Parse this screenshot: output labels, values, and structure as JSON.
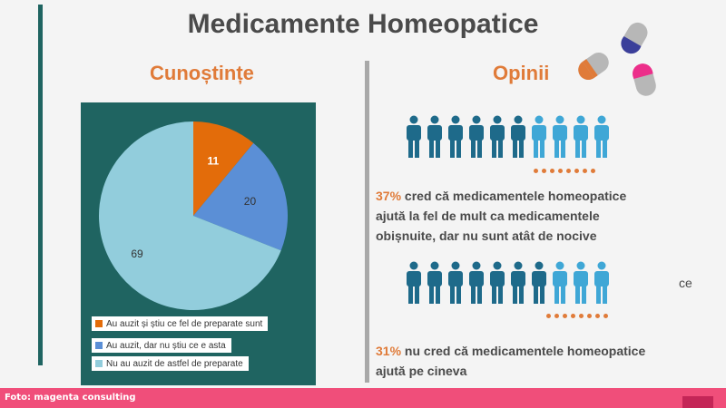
{
  "title": "Medicamente Homeopatice",
  "sections": {
    "left_title": "Cunoștințe",
    "right_title": "Opinii"
  },
  "chart_data": {
    "type": "pie",
    "slices": [
      {
        "label": "Au auzit și știu ce fel de preparate sunt",
        "value": 11,
        "color": "#e36c0a"
      },
      {
        "label": "Au auzit, dar nu știu ce e asta",
        "value": 20,
        "color": "#5b8fd6"
      },
      {
        "label": "Nu au auzit de astfel de preparate",
        "value": 69,
        "color": "#92cddc"
      }
    ],
    "legend_position": "bottom"
  },
  "opinions": [
    {
      "pct": "37%",
      "line1": "cred că medicamentele homeopatice",
      "line2": "ajută la fel de mult ca medicamentele",
      "line3": "obișnuite, dar nu sunt atât de nocive",
      "dark_people": 6,
      "light_people": 4
    },
    {
      "pct": "31%",
      "line1": "nu cred că medicamentele homeopatice",
      "line2": "ajută pe cineva",
      "dark_people": 7,
      "light_people": 3
    }
  ],
  "people_colors": {
    "dark": "#1e6a8a",
    "light": "#3fa7d6"
  },
  "fragment_text": "ce",
  "footer": {
    "credit": "Foto: magenta consulting"
  }
}
